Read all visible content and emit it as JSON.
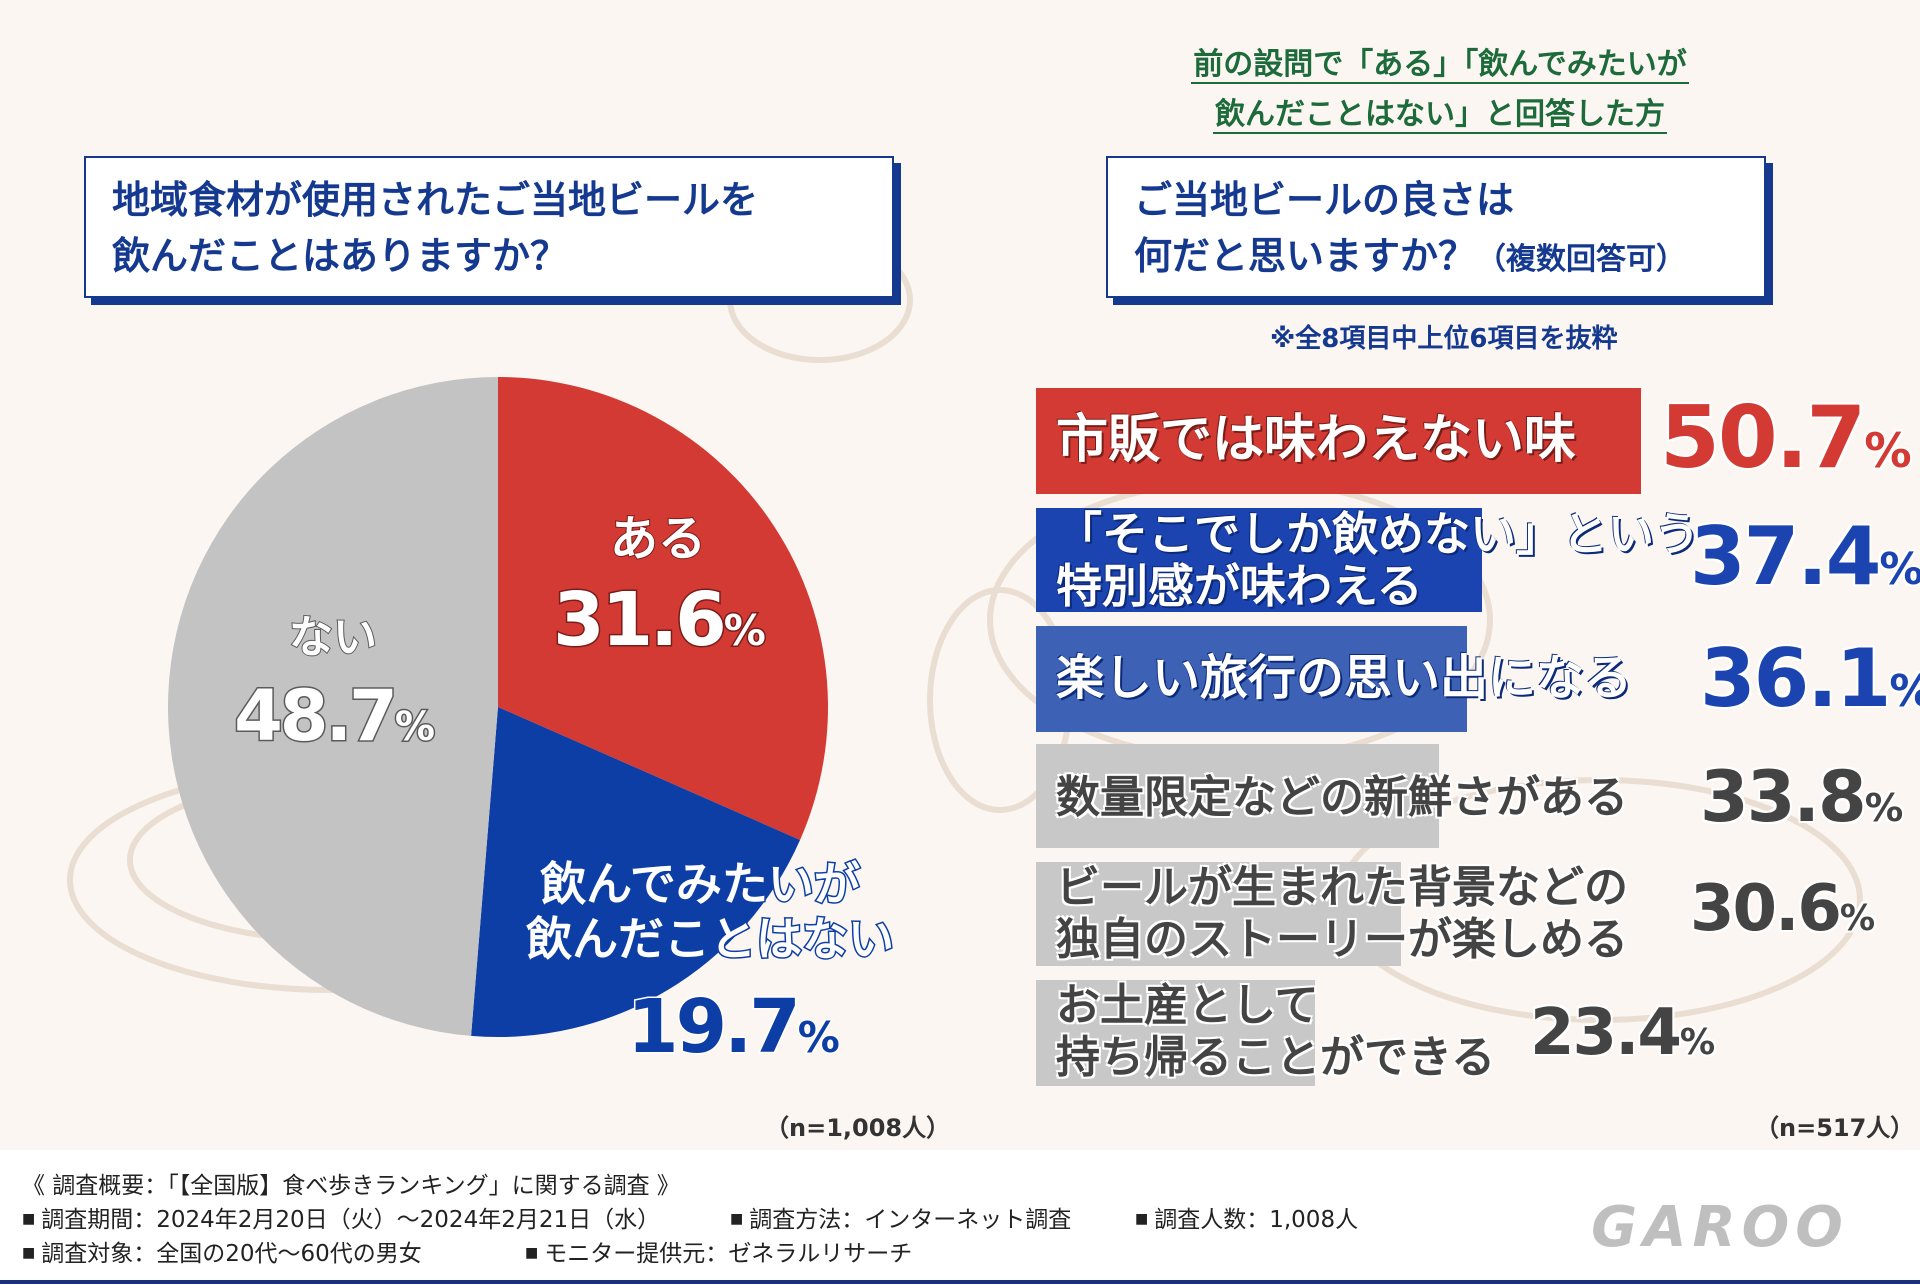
{
  "left_question": {
    "line1": "地域食材が使用されたご当地ビールを",
    "line2": "飲んだことはありますか？"
  },
  "right_subheading": {
    "line1": "前の設問で「ある」「飲んでみたいが",
    "line2": "飲んだことはない」と回答した方"
  },
  "right_question": {
    "line1": "ご当地ビールの良さは",
    "line2": "何だと思いますか？",
    "line2_small": "（複数回答可）"
  },
  "note": "※全8項目中上位6項目を抜粋",
  "left_n": "（n=1,008人）",
  "right_n": "（n=517人）",
  "chart_data": [
    {
      "type": "pie",
      "slices": [
        {
          "label": "ある",
          "value": 31.6,
          "color": "#d23a33"
        },
        {
          "label": "飲んでみたいが飲んだことはない",
          "value": 19.7,
          "color": "#0c3ea5"
        },
        {
          "label": "ない",
          "value": 48.7,
          "color": "#c3c3c3"
        }
      ],
      "labels": {
        "aru": {
          "name": "ある",
          "num": "31.6",
          "pct": "%"
        },
        "nomitai": {
          "line1": "飲んでみたいが",
          "line2": "飲んだことはない",
          "num": "19.7",
          "pct": "%"
        },
        "nai": {
          "name": "ない",
          "num": "48.7",
          "pct": "%"
        }
      }
    },
    {
      "type": "bar",
      "orientation": "horizontal",
      "items": [
        {
          "label": [
            "市販では味わえない味"
          ],
          "value": 50.7,
          "num": "50.7",
          "pct": "%",
          "color": "#d23a33"
        },
        {
          "label": [
            "「そこでしか飲めない」という",
            "特別感が味わえる"
          ],
          "value": 37.4,
          "num": "37.4",
          "pct": "%",
          "color": "#1b44b0"
        },
        {
          "label": [
            "楽しい旅行の思い出になる"
          ],
          "value": 36.1,
          "num": "36.1",
          "pct": "%",
          "color": "#3d62b5"
        },
        {
          "label": [
            "数量限定などの新鮮さがある"
          ],
          "value": 33.8,
          "num": "33.8",
          "pct": "%",
          "color": "#c8c8c8"
        },
        {
          "label": [
            "ビールが生まれた背景などの",
            "独自のストーリーが楽しめる"
          ],
          "value": 30.6,
          "num": "30.6",
          "pct": "%",
          "color": "#c8c8c8"
        },
        {
          "label": [
            "お土産として",
            "持ち帰ることができる"
          ],
          "value": 23.4,
          "num": "23.4",
          "pct": "%",
          "color": "#c8c8c8"
        }
      ]
    }
  ],
  "footer": {
    "summary": "《 調査概要：「【全国版】食べ歩きランキング」に関する調査 》",
    "period": "調査期間：2024年2月20日（火）～2024年2月21日（水）",
    "method": "調査方法：インターネット調査",
    "count": "調査人数：1,008人",
    "target": "調査対象：全国の20代～60代の男女",
    "provider": "モニター提供元：ゼネラルリサーチ",
    "bullet": "■",
    "logo": "GAROO"
  }
}
